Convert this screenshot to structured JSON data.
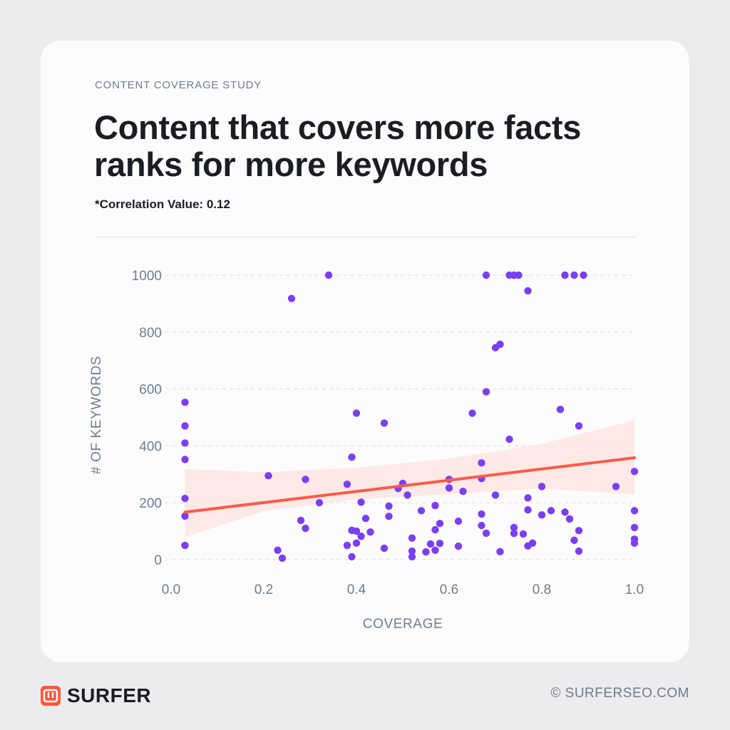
{
  "header": {
    "eyebrow": "CONTENT COVERAGE STUDY",
    "title": "Content that covers more facts ranks for more keywords",
    "subtitle": "*Correlation Value: 0.12"
  },
  "footer": {
    "brand": "SURFER",
    "url": "© SURFERSEO.COM"
  },
  "colors": {
    "point": "#7b3ff2",
    "trend": "#ff5a4a",
    "band": "#fde3df",
    "axis_text": "#6b7e92",
    "grid": "#d9dde2"
  },
  "chart_data": {
    "type": "scatter",
    "xlabel": "COVERAGE",
    "ylabel": "# OF KEYWORDS",
    "xlim": [
      0,
      1
    ],
    "ylim": [
      0,
      1000
    ],
    "x_ticks": [
      0.0,
      0.2,
      0.4,
      0.6,
      0.8,
      1.0
    ],
    "x_tick_labels": [
      "0.0",
      "0.2",
      "0.4",
      "0.6",
      "0.8",
      "1.0"
    ],
    "y_ticks": [
      0,
      200,
      400,
      600,
      800,
      1000
    ],
    "y_tick_labels": [
      "0",
      "200",
      "400",
      "600",
      "800",
      "1000"
    ],
    "grid": "horizontal dashed",
    "trendline": {
      "x": [
        0.03,
        1.0
      ],
      "y": [
        167,
        358
      ]
    },
    "confidence_band": {
      "x": [
        0.03,
        0.2,
        0.4,
        0.6,
        0.8,
        1.0
      ],
      "upper": [
        318,
        307,
        323,
        355,
        407,
        490
      ],
      "lower": [
        80,
        170,
        212,
        230,
        250,
        230
      ]
    },
    "points": [
      {
        "x": 0.03,
        "y": 553
      },
      {
        "x": 0.03,
        "y": 470
      },
      {
        "x": 0.03,
        "y": 410
      },
      {
        "x": 0.03,
        "y": 352
      },
      {
        "x": 0.03,
        "y": 215
      },
      {
        "x": 0.03,
        "y": 153
      },
      {
        "x": 0.03,
        "y": 50
      },
      {
        "x": 0.21,
        "y": 295
      },
      {
        "x": 0.23,
        "y": 33
      },
      {
        "x": 0.24,
        "y": 5
      },
      {
        "x": 0.26,
        "y": 918
      },
      {
        "x": 0.28,
        "y": 138
      },
      {
        "x": 0.29,
        "y": 110
      },
      {
        "x": 0.29,
        "y": 282
      },
      {
        "x": 0.32,
        "y": 200
      },
      {
        "x": 0.34,
        "y": 1000
      },
      {
        "x": 0.38,
        "y": 265
      },
      {
        "x": 0.38,
        "y": 50
      },
      {
        "x": 0.39,
        "y": 103
      },
      {
        "x": 0.39,
        "y": 10
      },
      {
        "x": 0.39,
        "y": 360
      },
      {
        "x": 0.4,
        "y": 515
      },
      {
        "x": 0.4,
        "y": 58
      },
      {
        "x": 0.4,
        "y": 100
      },
      {
        "x": 0.41,
        "y": 82
      },
      {
        "x": 0.41,
        "y": 202
      },
      {
        "x": 0.42,
        "y": 145
      },
      {
        "x": 0.43,
        "y": 97
      },
      {
        "x": 0.46,
        "y": 40
      },
      {
        "x": 0.46,
        "y": 480
      },
      {
        "x": 0.47,
        "y": 188
      },
      {
        "x": 0.47,
        "y": 152
      },
      {
        "x": 0.49,
        "y": 250
      },
      {
        "x": 0.5,
        "y": 268
      },
      {
        "x": 0.51,
        "y": 227
      },
      {
        "x": 0.52,
        "y": 76
      },
      {
        "x": 0.52,
        "y": 30
      },
      {
        "x": 0.52,
        "y": 10
      },
      {
        "x": 0.54,
        "y": 172
      },
      {
        "x": 0.55,
        "y": 27
      },
      {
        "x": 0.56,
        "y": 55
      },
      {
        "x": 0.57,
        "y": 105
      },
      {
        "x": 0.57,
        "y": 190
      },
      {
        "x": 0.57,
        "y": 33
      },
      {
        "x": 0.58,
        "y": 127
      },
      {
        "x": 0.58,
        "y": 57
      },
      {
        "x": 0.6,
        "y": 252
      },
      {
        "x": 0.6,
        "y": 282
      },
      {
        "x": 0.62,
        "y": 135
      },
      {
        "x": 0.62,
        "y": 47
      },
      {
        "x": 0.63,
        "y": 240
      },
      {
        "x": 0.65,
        "y": 515
      },
      {
        "x": 0.67,
        "y": 340
      },
      {
        "x": 0.67,
        "y": 285
      },
      {
        "x": 0.67,
        "y": 160
      },
      {
        "x": 0.67,
        "y": 120
      },
      {
        "x": 0.68,
        "y": 93
      },
      {
        "x": 0.68,
        "y": 590
      },
      {
        "x": 0.68,
        "y": 1000
      },
      {
        "x": 0.7,
        "y": 745
      },
      {
        "x": 0.7,
        "y": 227
      },
      {
        "x": 0.71,
        "y": 757
      },
      {
        "x": 0.71,
        "y": 28
      },
      {
        "x": 0.73,
        "y": 1000
      },
      {
        "x": 0.73,
        "y": 423
      },
      {
        "x": 0.74,
        "y": 1000
      },
      {
        "x": 0.75,
        "y": 1000
      },
      {
        "x": 0.74,
        "y": 92
      },
      {
        "x": 0.74,
        "y": 113
      },
      {
        "x": 0.76,
        "y": 90
      },
      {
        "x": 0.77,
        "y": 945
      },
      {
        "x": 0.77,
        "y": 217
      },
      {
        "x": 0.77,
        "y": 175
      },
      {
        "x": 0.77,
        "y": 48
      },
      {
        "x": 0.78,
        "y": 58
      },
      {
        "x": 0.8,
        "y": 257
      },
      {
        "x": 0.8,
        "y": 157
      },
      {
        "x": 0.82,
        "y": 172
      },
      {
        "x": 0.84,
        "y": 528
      },
      {
        "x": 0.85,
        "y": 167
      },
      {
        "x": 0.86,
        "y": 143
      },
      {
        "x": 0.85,
        "y": 1000
      },
      {
        "x": 0.87,
        "y": 1000
      },
      {
        "x": 0.87,
        "y": 68
      },
      {
        "x": 0.88,
        "y": 470
      },
      {
        "x": 0.88,
        "y": 102
      },
      {
        "x": 0.88,
        "y": 30
      },
      {
        "x": 0.89,
        "y": 1000
      },
      {
        "x": 0.96,
        "y": 257
      },
      {
        "x": 1.0,
        "y": 310
      },
      {
        "x": 1.0,
        "y": 172
      },
      {
        "x": 1.0,
        "y": 113
      },
      {
        "x": 1.0,
        "y": 72
      },
      {
        "x": 1.0,
        "y": 58
      }
    ]
  }
}
